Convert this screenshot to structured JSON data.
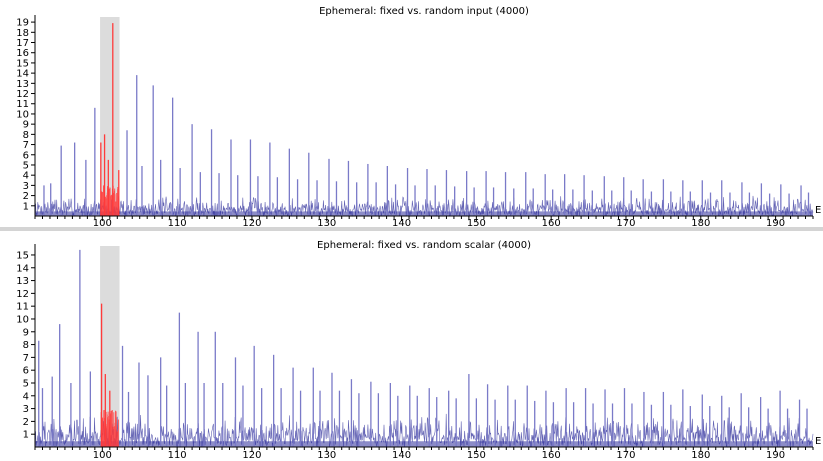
{
  "chart_data": [
    {
      "type": "line",
      "title": "Ephemeral: fixed vs. random input (4000)",
      "xlabel": "",
      "ylabel": "",
      "xlim": [
        91,
        195
      ],
      "ylim": [
        0,
        19.5
      ],
      "x_ticks": [
        100,
        110,
        120,
        130,
        140,
        150,
        160,
        170,
        180,
        190
      ],
      "y_ticks": [
        1,
        2,
        3,
        4,
        5,
        6,
        7,
        8,
        9,
        10,
        11,
        12,
        13,
        14,
        15,
        16,
        17,
        18,
        19
      ],
      "highlight_x_range": [
        99.7,
        102.3
      ],
      "grid": false,
      "end_marker": "E",
      "series": [
        {
          "color": "#2e2e9a",
          "spike_color": "#7a7ac8",
          "noise_level": 1.6,
          "highlight_color": "#ff3a3a",
          "x": [
            92.2,
            93.1,
            94.5,
            96.3,
            97.8,
            99.0,
            99.8,
            100.3,
            100.8,
            101.4,
            102.2,
            103.3,
            104.6,
            105.3,
            106.8,
            107.8,
            109.4,
            110.4,
            112.0,
            113.1,
            114.6,
            115.6,
            117.2,
            118.1,
            119.8,
            120.8,
            122.4,
            123.4,
            125.0,
            126.1,
            127.6,
            128.7,
            130.3,
            131.3,
            132.9,
            134.0,
            135.5,
            136.6,
            138.1,
            139.2,
            140.8,
            141.8,
            143.4,
            144.5,
            146.0,
            147.1,
            148.7,
            149.7,
            151.3,
            152.3,
            153.9,
            155.0,
            156.6,
            157.6,
            159.2,
            160.2,
            161.8,
            162.9,
            164.4,
            165.5,
            167.1,
            168.1,
            169.7,
            170.7,
            172.3,
            173.4,
            175.0,
            176.0,
            177.6,
            178.6,
            180.2,
            181.3,
            182.8,
            183.9,
            185.5,
            186.5,
            188.1,
            189.2,
            190.7,
            191.8,
            193.4,
            194.4
          ],
          "y": [
            3.0,
            3.2,
            6.9,
            7.2,
            5.5,
            10.6,
            7.2,
            8.0,
            5.5,
            18.9,
            4.5,
            8.4,
            13.8,
            4.9,
            12.8,
            5.5,
            11.6,
            4.7,
            9.0,
            4.3,
            8.5,
            4.2,
            7.5,
            4.0,
            7.5,
            3.9,
            7.2,
            3.8,
            6.6,
            3.6,
            6.2,
            3.5,
            5.6,
            3.4,
            5.4,
            3.3,
            5.1,
            3.3,
            4.9,
            3.1,
            4.7,
            3.0,
            4.6,
            3.0,
            4.5,
            2.9,
            4.4,
            2.8,
            4.4,
            2.8,
            4.3,
            2.7,
            4.3,
            2.7,
            4.1,
            2.6,
            4.1,
            2.6,
            4.0,
            2.5,
            3.9,
            2.5,
            3.8,
            2.5,
            3.6,
            2.4,
            3.6,
            2.4,
            3.5,
            2.4,
            3.5,
            2.3,
            3.5,
            2.3,
            3.3,
            2.3,
            3.2,
            2.2,
            3.1,
            2.2,
            3.0,
            2.3
          ]
        }
      ]
    },
    {
      "type": "line",
      "title": "Ephemeral: fixed vs. random scalar (4000)",
      "xlabel": "",
      "ylabel": "",
      "xlim": [
        91,
        195
      ],
      "ylim": [
        0,
        15.7
      ],
      "x_ticks": [
        100,
        110,
        120,
        130,
        140,
        150,
        160,
        170,
        180,
        190
      ],
      "y_ticks": [
        1,
        2,
        3,
        4,
        5,
        6,
        7,
        8,
        9,
        10,
        11,
        12,
        13,
        14,
        15
      ],
      "highlight_x_range": [
        99.7,
        102.3
      ],
      "grid": false,
      "end_marker": "E",
      "series": [
        {
          "color": "#2e2e9a",
          "spike_color": "#7a7ac8",
          "noise_level": 2.0,
          "highlight_color": "#ff3a3a",
          "x": [
            91.5,
            92.0,
            93.3,
            94.3,
            95.8,
            97.0,
            98.4,
            99.9,
            100.4,
            101.0,
            102.7,
            103.5,
            104.9,
            106.1,
            107.8,
            108.6,
            110.3,
            111.1,
            112.8,
            113.6,
            115.1,
            116.1,
            117.8,
            118.8,
            120.3,
            121.3,
            122.9,
            123.9,
            125.5,
            126.5,
            128.2,
            129.1,
            130.7,
            131.7,
            133.3,
            134.3,
            135.9,
            136.9,
            138.5,
            139.5,
            141.1,
            142.1,
            143.7,
            144.7,
            146.3,
            147.3,
            149.0,
            150.0,
            151.5,
            152.5,
            154.2,
            155.2,
            156.8,
            157.8,
            159.3,
            160.3,
            162.0,
            163.0,
            164.6,
            165.6,
            167.2,
            168.2,
            169.8,
            170.8,
            172.4,
            173.4,
            175.0,
            176.0,
            177.6,
            178.6,
            180.2,
            181.2,
            182.8,
            183.8,
            185.4,
            186.4,
            188.0,
            189.0,
            190.6,
            191.6,
            193.2,
            194.2
          ],
          "y": [
            8.3,
            4.6,
            5.5,
            9.6,
            5.0,
            15.4,
            5.9,
            11.2,
            5.7,
            4.4,
            7.9,
            4.3,
            6.6,
            5.6,
            7.0,
            4.8,
            10.5,
            5.0,
            9.0,
            5.0,
            9.0,
            5.0,
            7.0,
            4.8,
            7.9,
            4.6,
            7.2,
            4.6,
            6.2,
            4.4,
            6.2,
            4.4,
            5.8,
            4.4,
            5.3,
            4.2,
            5.1,
            4.2,
            5.0,
            4.0,
            4.8,
            4.0,
            4.6,
            3.9,
            4.4,
            3.8,
            5.7,
            3.8,
            4.9,
            3.7,
            4.8,
            3.7,
            4.8,
            3.6,
            4.4,
            3.5,
            4.6,
            3.5,
            4.6,
            3.4,
            4.5,
            3.4,
            4.6,
            3.4,
            4.3,
            3.3,
            4.3,
            3.3,
            4.5,
            3.2,
            4.1,
            3.2,
            4.0,
            3.1,
            4.2,
            3.1,
            3.9,
            3.0,
            4.4,
            3.0,
            3.7,
            3.0
          ]
        }
      ]
    }
  ]
}
